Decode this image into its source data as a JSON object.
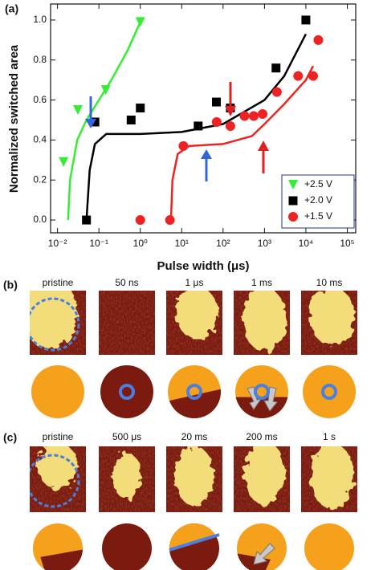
{
  "chart_data": {
    "type": "scatter",
    "panel_label": "(a)",
    "x_label": "Pulse width (μs)",
    "y_label": "Normalized switched area",
    "xlog": true,
    "xlim": [
      0.0068,
      160000
    ],
    "xticks": [
      {
        "value": 0.01,
        "label": "10⁻²"
      },
      {
        "value": 0.1,
        "label": "10⁻¹"
      },
      {
        "value": 1,
        "label": "10⁰"
      },
      {
        "value": 10,
        "label": "10¹"
      },
      {
        "value": 100,
        "label": "10²"
      },
      {
        "value": 1000,
        "label": "10³"
      },
      {
        "value": 10000,
        "label": "10⁴"
      },
      {
        "value": 100000,
        "label": "10⁵"
      }
    ],
    "ylim": [
      -0.064,
      1.08
    ],
    "yticks": [
      {
        "value": 0,
        "label": "0.0"
      },
      0.2,
      0.4,
      0.6,
      0.8,
      {
        "value": 1,
        "label": "1.0"
      }
    ],
    "legend": "lower right",
    "series": [
      {
        "name": "+2.5 V",
        "color": "#33ee33",
        "marker": "triangle-down",
        "x": [
          0.014,
          0.031,
          0.146,
          1.0
        ],
        "values": [
          0.29,
          0.55,
          0.65,
          0.99
        ]
      },
      {
        "name": "+2.0 V",
        "color": "#000000",
        "marker": "square",
        "x": [
          0.05,
          0.08,
          0.6,
          1.0,
          25,
          69,
          150,
          1900,
          10000
        ],
        "values": [
          0.0,
          0.49,
          0.5,
          0.56,
          0.47,
          0.59,
          0.56,
          0.76,
          1.0
        ]
      },
      {
        "name": "+1.5 V",
        "color": "#ee2222",
        "marker": "circle",
        "x": [
          1.0,
          5.2,
          11,
          70,
          150,
          330,
          550,
          900,
          2000,
          6500,
          15000,
          20000
        ],
        "values": [
          0.0,
          0.0,
          0.37,
          0.49,
          0.47,
          0.52,
          0.52,
          0.53,
          0.64,
          0.72,
          0.72,
          0.9
        ]
      }
    ],
    "fits": [
      {
        "color": "#33ee33",
        "x": [
          0.018,
          0.02,
          0.03,
          0.05,
          0.1,
          0.2,
          0.5,
          1.0
        ],
        "y": [
          0.0,
          0.2,
          0.4,
          0.5,
          0.6,
          0.7,
          0.85,
          0.99
        ]
      },
      {
        "color": "#000000",
        "x": [
          0.05,
          0.06,
          0.08,
          0.15,
          1,
          10,
          100,
          1000,
          3000,
          10000
        ],
        "y": [
          0.0,
          0.25,
          0.38,
          0.43,
          0.43,
          0.44,
          0.48,
          0.6,
          0.72,
          0.93
        ]
      },
      {
        "color": "#ee2222",
        "x": [
          5.5,
          6,
          8,
          15,
          100,
          500,
          1000,
          3000,
          10000,
          15000
        ],
        "y": [
          0.0,
          0.2,
          0.33,
          0.37,
          0.38,
          0.42,
          0.48,
          0.58,
          0.7,
          0.77
        ]
      }
    ]
  },
  "panel_b": {
    "label": "(b)",
    "times": [
      "pristine",
      "50 ns",
      "1 μs",
      "1 ms",
      "10 ms"
    ]
  },
  "panel_c": {
    "label": "(c)",
    "times": [
      "pristine",
      "500 μs",
      "20 ms",
      "200 ms",
      "1 s"
    ]
  }
}
